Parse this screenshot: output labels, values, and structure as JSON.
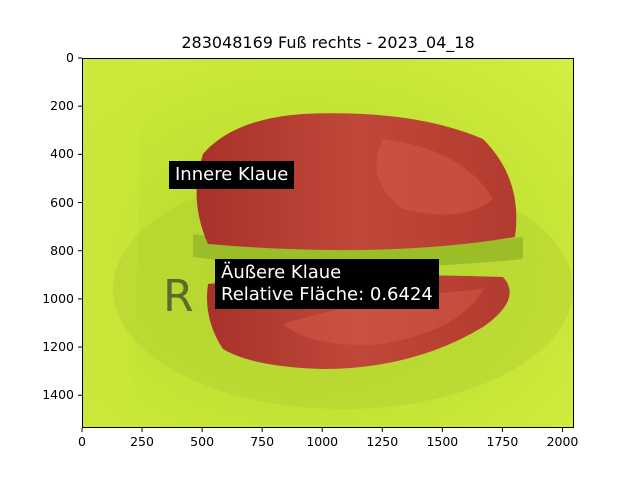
{
  "figure": {
    "title": "283048169 Fuß rechts - 2023_04_18"
  },
  "image": {
    "description_icon": "hoof-segmentation-photo",
    "background_color": "#c8e83a",
    "overlay_color": "#b03a2e",
    "marker_letter": "R"
  },
  "axes": {
    "x_ticks": [
      "0",
      "250",
      "500",
      "750",
      "1000",
      "1250",
      "1500",
      "1750",
      "2000"
    ],
    "y_ticks": [
      "0",
      "200",
      "400",
      "600",
      "800",
      "1000",
      "1200",
      "1400"
    ],
    "x_tick_values": [
      0,
      250,
      500,
      750,
      1000,
      1250,
      1500,
      1750,
      2000
    ],
    "y_tick_values": [
      0,
      200,
      400,
      600,
      800,
      1000,
      1200,
      1400
    ],
    "xlim": [
      0,
      2048
    ],
    "ylim": [
      1536,
      0
    ]
  },
  "annotations": {
    "inner_label": "Innere Klaue",
    "outer_label_line1": "Äußere Klaue",
    "outer_label_line2": "Relative Fläche: 0.6424"
  }
}
